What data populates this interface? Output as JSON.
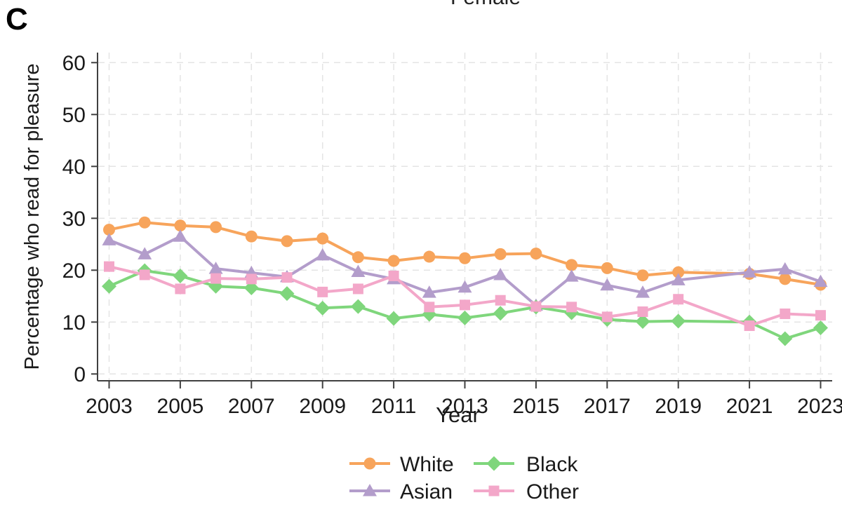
{
  "panel_label": "C",
  "top_legend": {
    "label": "Female",
    "line_color": "#b9b9b9"
  },
  "colors": {
    "axis": "#404040",
    "grid": "#e4e4e4",
    "text": "#1a1a1a"
  },
  "chart_data": {
    "type": "line",
    "title": "",
    "xlabel": "Year",
    "ylabel": "Percentage who read for pleasure",
    "x": [
      2003,
      2004,
      2005,
      2006,
      2007,
      2008,
      2009,
      2010,
      2011,
      2012,
      2013,
      2014,
      2015,
      2016,
      2017,
      2018,
      2019,
      2020,
      2021,
      2022,
      2023
    ],
    "x_tick_labels": [
      "2003",
      "2005",
      "2007",
      "2009",
      "2011",
      "2013",
      "2015",
      "2017",
      "2019",
      "2021",
      "2023"
    ],
    "y_ticks": [
      "0",
      "10",
      "20",
      "30",
      "40",
      "50",
      "60"
    ],
    "ylim": [
      0,
      60
    ],
    "xlim": [
      2003,
      2023
    ],
    "grid": "dashed-both",
    "missing_years": [
      2020
    ],
    "legend_position": "bottom",
    "legend_columns": [
      [
        "White",
        "Asian"
      ],
      [
        "Black",
        "Other"
      ]
    ],
    "series": [
      {
        "name": "White",
        "marker": "circle",
        "color": "#F7A45B",
        "values": [
          27.8,
          29.2,
          28.6,
          28.3,
          26.5,
          25.6,
          26.1,
          22.5,
          21.8,
          22.6,
          22.3,
          23.1,
          23.2,
          21.0,
          20.4,
          19.0,
          19.6,
          null,
          19.3,
          18.3,
          17.2
        ]
      },
      {
        "name": "Asian",
        "marker": "triangle",
        "color": "#B39DCB",
        "values": [
          25.8,
          23.1,
          26.5,
          20.3,
          19.5,
          18.7,
          22.9,
          19.7,
          18.3,
          15.7,
          16.7,
          19.1,
          13.2,
          18.8,
          17.1,
          15.7,
          18.1,
          null,
          19.6,
          20.2,
          17.8
        ]
      },
      {
        "name": "Black",
        "marker": "diamond",
        "color": "#7FD67C",
        "values": [
          16.9,
          19.9,
          18.9,
          16.9,
          16.6,
          15.5,
          12.7,
          13.0,
          10.7,
          11.5,
          10.8,
          11.7,
          12.9,
          11.8,
          10.5,
          10.1,
          10.2,
          null,
          10.0,
          6.8,
          8.9
        ]
      },
      {
        "name": "Other",
        "marker": "square",
        "color": "#F3A7C9",
        "values": [
          20.7,
          19.1,
          16.4,
          18.4,
          18.3,
          18.6,
          15.8,
          16.4,
          18.9,
          12.9,
          13.3,
          14.2,
          13.0,
          12.9,
          11.0,
          12.0,
          14.4,
          null,
          9.3,
          11.6,
          11.3
        ]
      }
    ]
  }
}
